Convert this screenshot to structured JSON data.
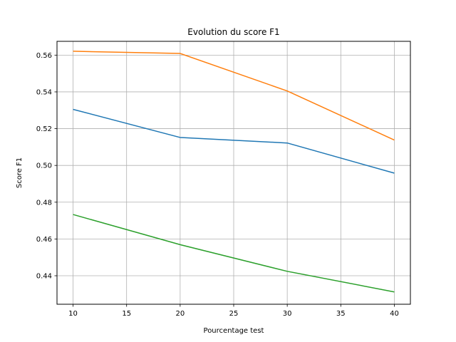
{
  "chart_data": {
    "type": "line",
    "title": "Evolution du score F1",
    "xlabel": "Pourcentage test",
    "ylabel": "Score F1",
    "x": [
      10,
      20,
      30,
      40
    ],
    "xlim": [
      8.5,
      41.5
    ],
    "ylim": [
      0.4245,
      0.5675
    ],
    "xticks": [
      10,
      15,
      20,
      25,
      30,
      35,
      40
    ],
    "yticks": [
      0.44,
      0.46,
      0.48,
      0.5,
      0.52,
      0.54,
      0.56
    ],
    "grid": true,
    "series": [
      {
        "color": "#1f77b4",
        "values": [
          0.5305,
          0.5152,
          0.5122,
          0.4958
        ]
      },
      {
        "color": "#ff7f0e",
        "values": [
          0.5621,
          0.5609,
          0.5405,
          0.5138
        ]
      },
      {
        "color": "#2ca02c",
        "values": [
          0.4733,
          0.4569,
          0.4424,
          0.4312
        ]
      }
    ]
  }
}
